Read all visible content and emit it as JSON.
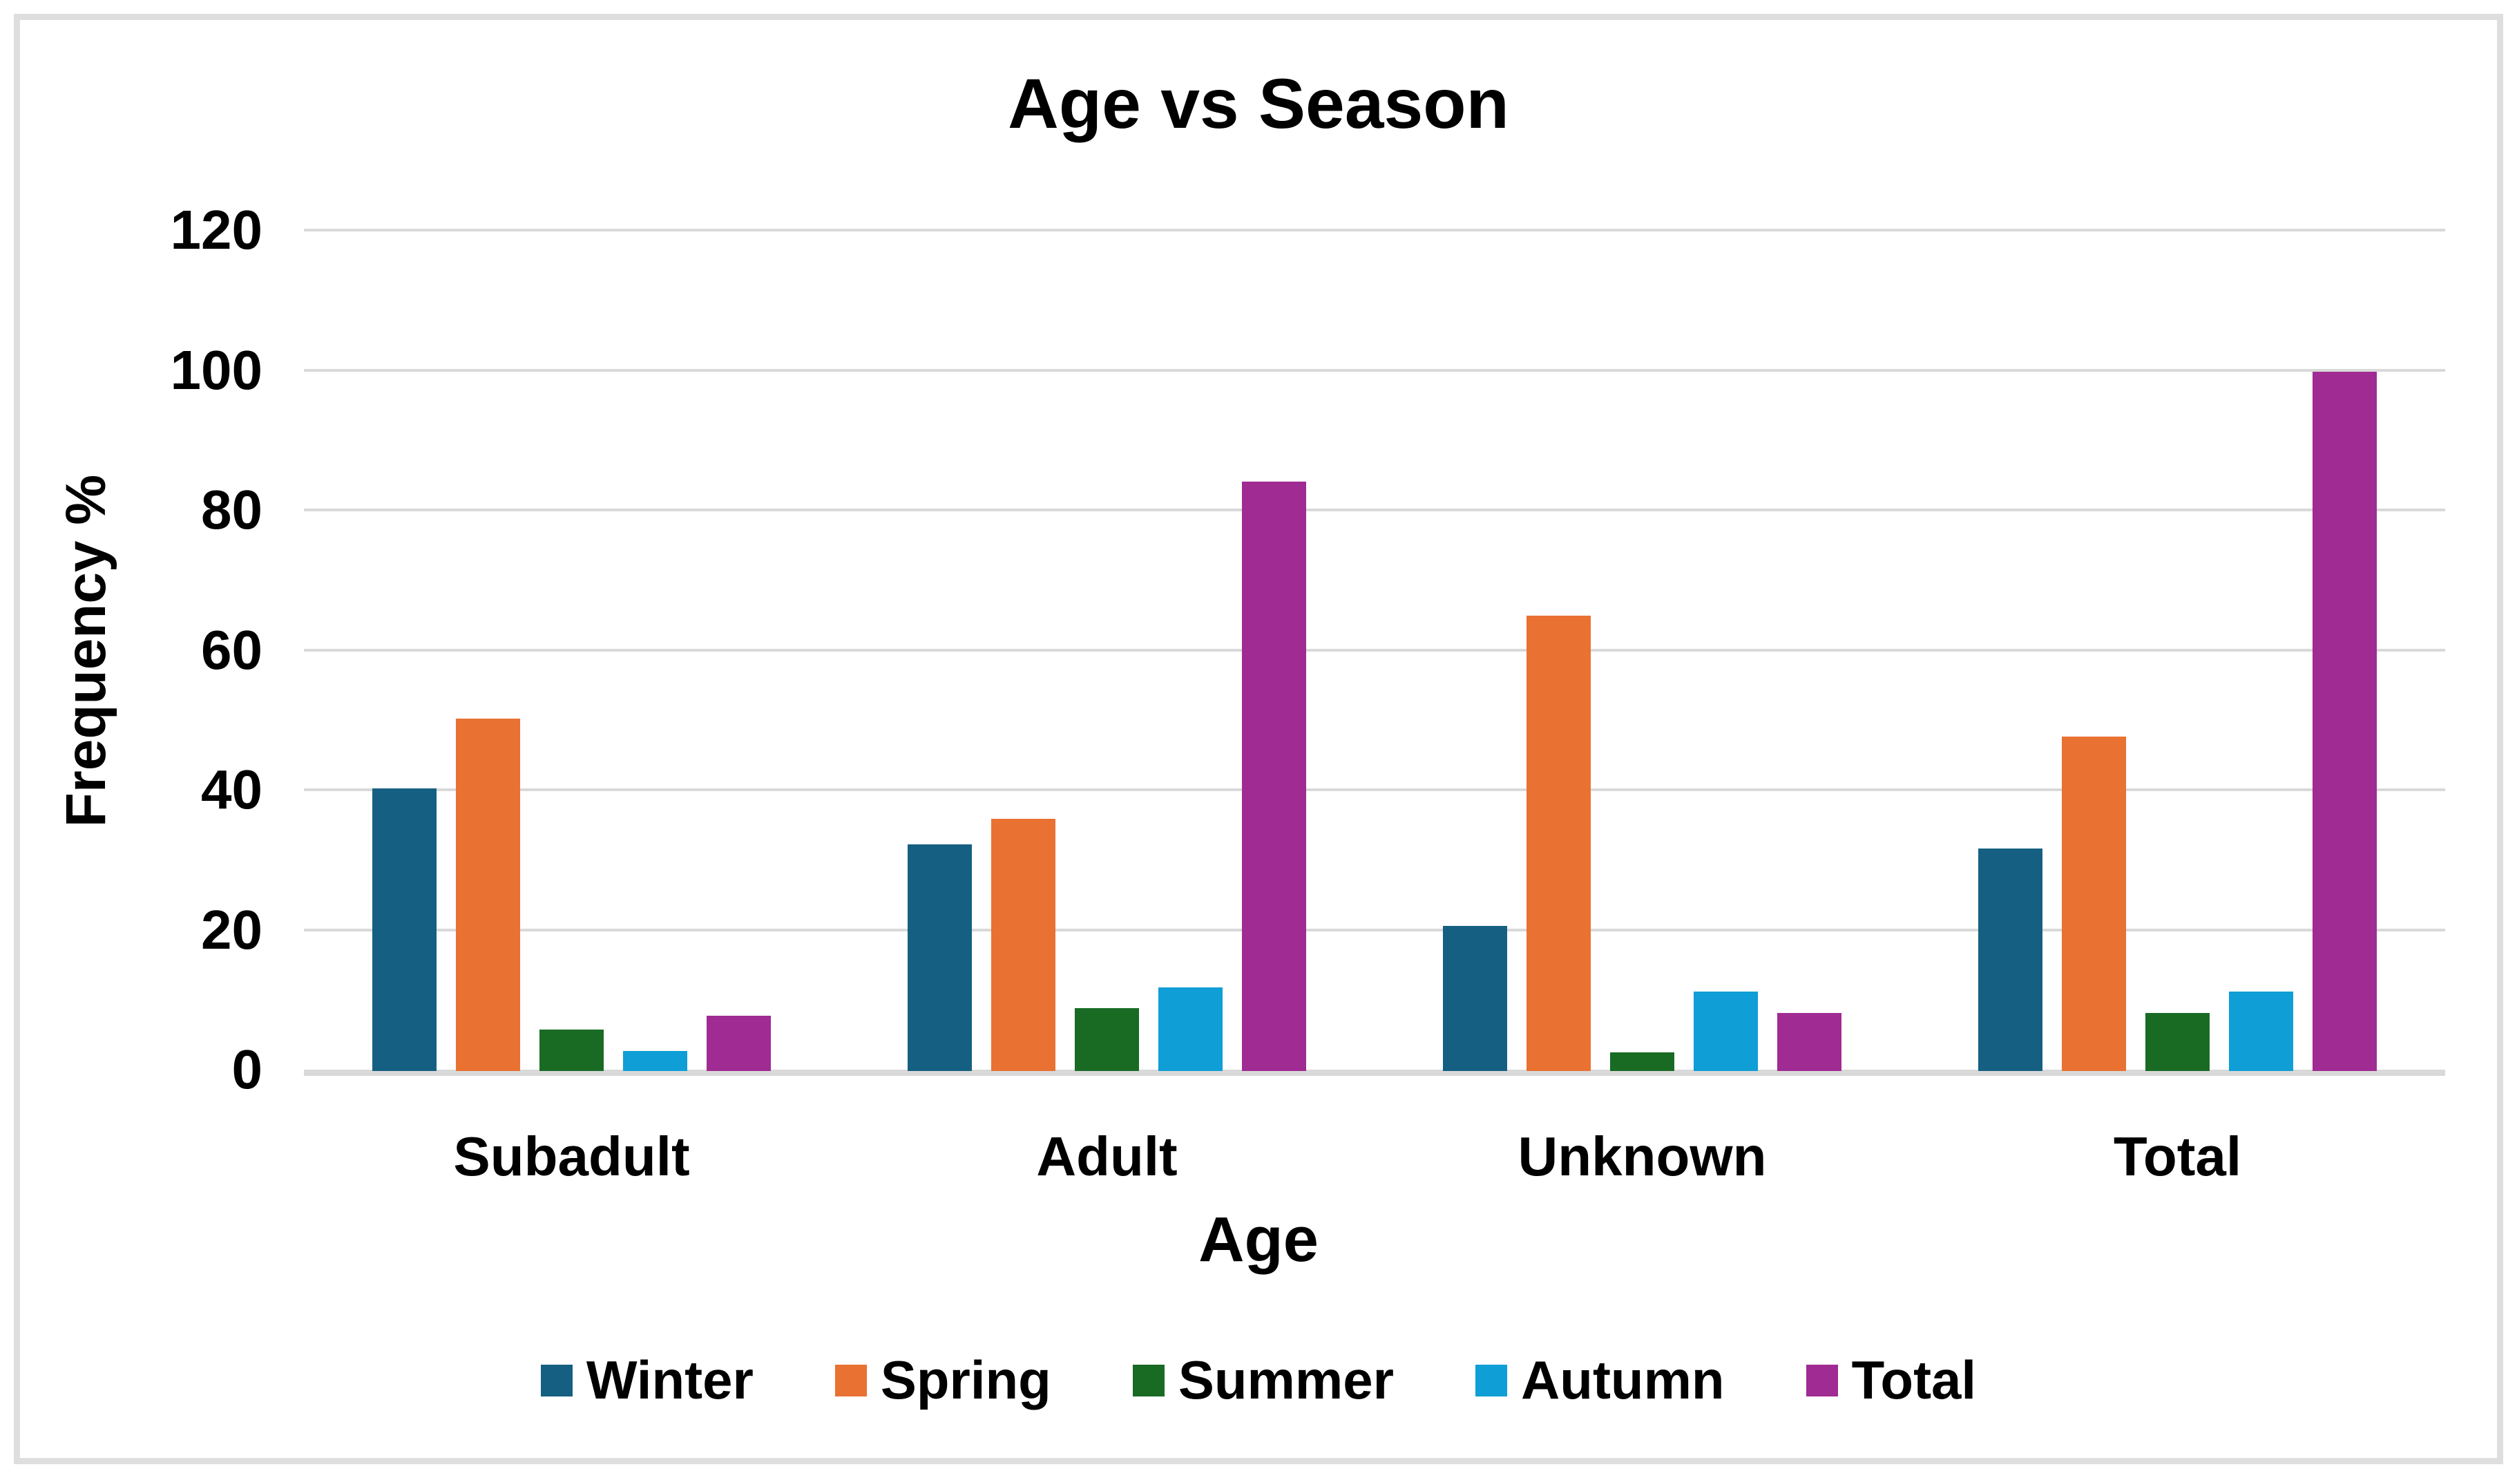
{
  "figure": {
    "background": "#ffffff",
    "border_color": "#dedede",
    "text_color": "#000000",
    "gridline_color": "#d9d9d9"
  },
  "chart_data": {
    "type": "bar",
    "title": "Age vs Season",
    "xlabel": "Age",
    "ylabel": "Frequency %",
    "categories": [
      "Subadult",
      "Adult",
      "Unknown",
      "Total"
    ],
    "series": [
      {
        "name": "Winter",
        "color": "#156082",
        "values": [
          40.4,
          32.4,
          20.7,
          31.8
        ]
      },
      {
        "name": "Spring",
        "color": "#E97132",
        "values": [
          50.4,
          36.1,
          65.1,
          47.8
        ]
      },
      {
        "name": "Summer",
        "color": "#196B24",
        "values": [
          5.9,
          9.0,
          2.7,
          8.3
        ]
      },
      {
        "name": "Autumn",
        "color": "#0F9ED5",
        "values": [
          2.9,
          12.0,
          11.4,
          11.4
        ]
      },
      {
        "name": "Total",
        "color": "#A02B93",
        "values": [
          7.9,
          84.2,
          8.3,
          100.0
        ]
      }
    ],
    "ylim": [
      0,
      120
    ],
    "yticks": [
      0,
      20,
      40,
      60,
      80,
      100,
      120
    ],
    "grid": true,
    "legend_position": "bottom"
  }
}
